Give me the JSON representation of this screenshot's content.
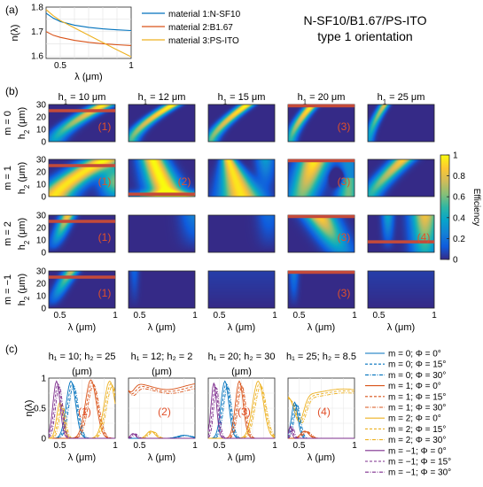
{
  "figure": {
    "panel_labels": [
      "(a)",
      "(b)",
      "(c)"
    ],
    "title_line1": "N-SF10/B1.67/PS-ITO",
    "title_line2": "type 1 orientation",
    "colorbar": {
      "label": "Efficiency",
      "ticks": [
        "1",
        "0.8",
        "0.6",
        "0.4",
        "0.2",
        "0"
      ],
      "colors": [
        "#352a87",
        "#0f5cdd",
        "#1481d6",
        "#06a4ca",
        "#2eb7a4",
        "#87bf77",
        "#d1bb59",
        "#fec832",
        "#f9fb0e"
      ]
    }
  },
  "chart_data": [
    {
      "type": "line",
      "panel": "(a)",
      "ylabel": "n(λ)",
      "xlabel": "λ (μm)",
      "xlim": [
        0.4,
        1.0
      ],
      "ylim": [
        1.59,
        1.8
      ],
      "xticks": [
        "0.5",
        "1"
      ],
      "yticks": [
        "1.8",
        "1.7",
        "1.6"
      ],
      "grid": true,
      "legend_position": "right",
      "x": [
        0.4,
        0.45,
        0.5,
        0.6,
        0.7,
        0.8,
        0.9,
        1.0
      ],
      "series": [
        {
          "name": "material 1:N-SF10",
          "color": "#0072bd",
          "values": [
            1.775,
            1.755,
            1.741,
            1.726,
            1.717,
            1.711,
            1.707,
            1.704
          ]
        },
        {
          "name": "material 2:B1.67",
          "color": "#d95319",
          "values": [
            1.7,
            1.685,
            1.676,
            1.664,
            1.656,
            1.65,
            1.646,
            1.643
          ]
        },
        {
          "name": "material 3:PS-ITO",
          "color": "#edb120",
          "values": [
            1.79,
            1.765,
            1.745,
            1.715,
            1.685,
            1.655,
            1.625,
            1.597
          ]
        }
      ]
    },
    {
      "type": "heatmap",
      "panel": "(b)",
      "xlabel": "λ (μm)",
      "ylabel": "h₂ (μm)",
      "xlim": [
        0.4,
        1.0
      ],
      "ylim": [
        0,
        30
      ],
      "xticks": [
        "0.5",
        "1"
      ],
      "yticks": [
        "30",
        "20",
        "10",
        "0"
      ],
      "columns": [
        "10",
        "12",
        "15",
        "20",
        "25"
      ],
      "rows": [
        "0",
        "1",
        "2",
        "−1"
      ],
      "markers": [
        {
          "row": 0,
          "col": 0,
          "h2": 25,
          "label": "(1)"
        },
        {
          "row": 0,
          "col": 3,
          "h2": 30,
          "label": "(3)"
        },
        {
          "row": 1,
          "col": 0,
          "h2": 25,
          "label": "(1)"
        },
        {
          "row": 1,
          "col": 1,
          "h2": 2,
          "label": "(2)"
        },
        {
          "row": 1,
          "col": 3,
          "h2": 30,
          "label": "(3)"
        },
        {
          "row": 2,
          "col": 0,
          "h2": 25,
          "label": "(1)"
        },
        {
          "row": 2,
          "col": 3,
          "h2": 30,
          "label": "(3)"
        },
        {
          "row": 2,
          "col": 4,
          "h2": 8.5,
          "label": "(4)"
        },
        {
          "row": 3,
          "col": 0,
          "h2": 25,
          "label": "(1)"
        },
        {
          "row": 3,
          "col": 3,
          "h2": 30,
          "label": "(3)"
        }
      ]
    },
    {
      "type": "line",
      "panel": "(c)",
      "ylabel": "η(λ)",
      "xlabel": "λ (μm)",
      "xlim": [
        0.4,
        1.0
      ],
      "ylim": [
        0,
        1
      ],
      "xticks": [
        "0.5",
        "1"
      ],
      "yticks": [
        "1",
        "0.5",
        "0"
      ],
      "grid": true,
      "titles": [
        {
          "line1": "h₁ = 10; h₂ = 25",
          "line2": "(μm)"
        },
        {
          "line1": "h₁ = 12; h₂ = 2",
          "line2": "(μm)"
        },
        {
          "line1": "h₁ = 20; h₂ = 30",
          "line2": "(μm)"
        },
        {
          "line1": "h₁ = 25; h₂ = 8.5",
          "line2": ""
        }
      ],
      "plot_labels": [
        "(1)",
        "(2)",
        "(3)",
        "(4)"
      ],
      "legend_position": "right",
      "legend": [
        {
          "name": "m = 0; Φ = 0°",
          "color": "#0072bd",
          "style": "solid"
        },
        {
          "name": "m = 0; Φ = 15°",
          "color": "#0072bd",
          "style": "dashed"
        },
        {
          "name": "m = 0; Φ = 30°",
          "color": "#0072bd",
          "style": "dashdot"
        },
        {
          "name": "m = 1; Φ = 0°",
          "color": "#d95319",
          "style": "solid"
        },
        {
          "name": "m = 1; Φ = 15°",
          "color": "#d95319",
          "style": "dashed"
        },
        {
          "name": "m = 1; Φ = 30°",
          "color": "#d95319",
          "style": "dashdot"
        },
        {
          "name": "m = 2; Φ = 0°",
          "color": "#edb120",
          "style": "solid"
        },
        {
          "name": "m = 2; Φ = 15°",
          "color": "#edb120",
          "style": "dashed"
        },
        {
          "name": "m = 2; Φ = 30°",
          "color": "#edb120",
          "style": "dashdot"
        },
        {
          "name": "m = −1; Φ = 0°",
          "color": "#7e2f8e",
          "style": "solid"
        },
        {
          "name": "m = −1; Φ = 15°",
          "color": "#7e2f8e",
          "style": "dashed"
        },
        {
          "name": "m = −1; Φ = 30°",
          "color": "#7e2f8e",
          "style": "dashdot"
        }
      ]
    }
  ]
}
